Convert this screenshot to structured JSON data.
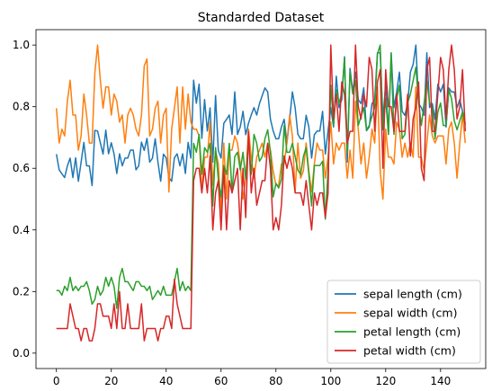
{
  "chart_data": {
    "type": "line",
    "title": "Standarded Dataset",
    "xlabel": "",
    "ylabel": "",
    "xlim": [
      -7.45,
      156.45
    ],
    "ylim": [
      -0.05,
      1.05
    ],
    "xticks": [
      0,
      20,
      40,
      60,
      80,
      100,
      120,
      140
    ],
    "yticks": [
      0.0,
      0.2,
      0.4,
      0.6,
      0.8,
      1.0
    ],
    "grid": false,
    "legend_position": "lower-right",
    "series": [
      {
        "name": "sepal length (cm)",
        "color": "#1f77b4",
        "values": [
          0.646,
          0.595,
          0.582,
          0.57,
          0.608,
          0.633,
          0.57,
          0.634,
          0.558,
          0.62,
          0.684,
          0.608,
          0.608,
          0.544,
          0.723,
          0.721,
          0.683,
          0.646,
          0.724,
          0.647,
          0.683,
          0.647,
          0.583,
          0.647,
          0.608,
          0.633,
          0.633,
          0.659,
          0.659,
          0.595,
          0.608,
          0.685,
          0.658,
          0.697,
          0.62,
          0.633,
          0.696,
          0.62,
          0.558,
          0.646,
          0.634,
          0.57,
          0.558,
          0.634,
          0.647,
          0.608,
          0.647,
          0.583,
          0.684,
          0.633,
          0.886,
          0.811,
          0.873,
          0.697,
          0.823,
          0.721,
          0.796,
          0.62,
          0.836,
          0.658,
          0.633,
          0.746,
          0.759,
          0.773,
          0.71,
          0.848,
          0.71,
          0.734,
          0.785,
          0.709,
          0.746,
          0.773,
          0.797,
          0.773,
          0.81,
          0.836,
          0.861,
          0.848,
          0.759,
          0.721,
          0.696,
          0.696,
          0.734,
          0.759,
          0.683,
          0.759,
          0.848,
          0.797,
          0.71,
          0.696,
          0.696,
          0.772,
          0.734,
          0.633,
          0.709,
          0.721,
          0.721,
          0.785,
          0.646,
          0.721,
          0.797,
          0.734,
          0.899,
          0.797,
          0.823,
          0.962,
          0.62,
          0.924,
          0.848,
          0.912,
          0.823,
          0.81,
          0.861,
          0.722,
          0.734,
          0.81,
          0.823,
          0.975,
          0.975,
          0.759,
          0.873,
          0.71,
          0.975,
          0.797,
          0.848,
          0.912,
          0.785,
          0.772,
          0.81,
          0.912,
          0.937,
          1.0,
          0.81,
          0.797,
          0.772,
          0.975,
          0.797,
          0.81,
          0.759,
          0.873,
          0.848,
          0.873,
          0.734,
          0.861,
          0.848,
          0.848,
          0.797,
          0.823,
          0.785,
          0.746
        ]
      },
      {
        "name": "sepal width (cm)",
        "color": "#ff7f0e",
        "values": [
          0.795,
          0.682,
          0.727,
          0.705,
          0.818,
          0.886,
          0.773,
          0.773,
          0.659,
          0.705,
          0.841,
          0.773,
          0.682,
          0.682,
          0.909,
          1.0,
          0.886,
          0.795,
          0.864,
          0.864,
          0.773,
          0.841,
          0.818,
          0.75,
          0.773,
          0.682,
          0.773,
          0.795,
          0.773,
          0.727,
          0.705,
          0.773,
          0.932,
          0.955,
          0.705,
          0.727,
          0.795,
          0.818,
          0.682,
          0.773,
          0.795,
          0.523,
          0.727,
          0.795,
          0.864,
          0.682,
          0.864,
          0.727,
          0.841,
          0.75,
          0.727,
          0.727,
          0.705,
          0.523,
          0.636,
          0.636,
          0.75,
          0.545,
          0.659,
          0.614,
          0.455,
          0.682,
          0.5,
          0.659,
          0.659,
          0.705,
          0.682,
          0.614,
          0.5,
          0.568,
          0.727,
          0.636,
          0.568,
          0.636,
          0.659,
          0.682,
          0.636,
          0.682,
          0.659,
          0.591,
          0.545,
          0.545,
          0.614,
          0.614,
          0.682,
          0.773,
          0.705,
          0.523,
          0.682,
          0.568,
          0.591,
          0.682,
          0.591,
          0.523,
          0.614,
          0.682,
          0.659,
          0.659,
          0.568,
          0.636,
          0.75,
          0.614,
          0.682,
          0.659,
          0.682,
          0.682,
          0.568,
          0.659,
          0.568,
          0.818,
          0.727,
          0.614,
          0.682,
          0.568,
          0.636,
          0.727,
          0.682,
          0.864,
          0.591,
          0.5,
          0.727,
          0.636,
          0.636,
          0.614,
          0.75,
          0.727,
          0.636,
          0.682,
          0.636,
          0.682,
          0.636,
          0.864,
          0.636,
          0.636,
          0.591,
          0.682,
          0.773,
          0.705,
          0.682,
          0.705,
          0.705,
          0.705,
          0.614,
          0.727,
          0.75,
          0.682,
          0.568,
          0.682,
          0.773,
          0.682
        ]
      },
      {
        "name": "petal length (cm)",
        "color": "#2ca02c",
        "values": [
          0.203,
          0.203,
          0.188,
          0.217,
          0.203,
          0.246,
          0.203,
          0.217,
          0.203,
          0.217,
          0.217,
          0.232,
          0.203,
          0.159,
          0.174,
          0.217,
          0.188,
          0.203,
          0.246,
          0.217,
          0.246,
          0.217,
          0.145,
          0.246,
          0.275,
          0.232,
          0.232,
          0.217,
          0.203,
          0.232,
          0.232,
          0.217,
          0.217,
          0.203,
          0.217,
          0.174,
          0.188,
          0.203,
          0.188,
          0.217,
          0.188,
          0.188,
          0.188,
          0.232,
          0.275,
          0.203,
          0.232,
          0.203,
          0.217,
          0.203,
          0.681,
          0.652,
          0.71,
          0.58,
          0.667,
          0.652,
          0.681,
          0.478,
          0.667,
          0.565,
          0.507,
          0.609,
          0.58,
          0.681,
          0.522,
          0.638,
          0.652,
          0.594,
          0.652,
          0.565,
          0.696,
          0.58,
          0.71,
          0.681,
          0.623,
          0.638,
          0.696,
          0.725,
          0.652,
          0.507,
          0.551,
          0.536,
          0.565,
          0.739,
          0.652,
          0.652,
          0.681,
          0.638,
          0.594,
          0.58,
          0.638,
          0.667,
          0.58,
          0.478,
          0.609,
          0.609,
          0.609,
          0.623,
          0.435,
          0.594,
          0.87,
          0.739,
          0.855,
          0.812,
          0.841,
          0.957,
          0.652,
          0.913,
          0.841,
          0.884,
          0.739,
          0.768,
          0.797,
          0.725,
          0.739,
          0.768,
          0.797,
          0.971,
          1.0,
          0.725,
          0.826,
          0.71,
          0.971,
          0.71,
          0.826,
          0.87,
          0.696,
          0.71,
          0.812,
          0.841,
          0.884,
          0.928,
          0.812,
          0.739,
          0.812,
          0.884,
          0.812,
          0.797,
          0.696,
          0.783,
          0.812,
          0.739,
          0.739,
          0.855,
          0.826,
          0.754,
          0.725,
          0.754,
          0.783,
          0.739
        ]
      },
      {
        "name": "petal width (cm)",
        "color": "#d62728",
        "values": [
          0.08,
          0.08,
          0.08,
          0.08,
          0.08,
          0.16,
          0.12,
          0.08,
          0.08,
          0.04,
          0.08,
          0.08,
          0.04,
          0.04,
          0.08,
          0.16,
          0.16,
          0.12,
          0.12,
          0.12,
          0.08,
          0.16,
          0.08,
          0.2,
          0.08,
          0.08,
          0.16,
          0.08,
          0.08,
          0.08,
          0.08,
          0.16,
          0.04,
          0.08,
          0.08,
          0.08,
          0.08,
          0.04,
          0.08,
          0.08,
          0.12,
          0.12,
          0.08,
          0.24,
          0.16,
          0.12,
          0.08,
          0.08,
          0.08,
          0.08,
          0.56,
          0.6,
          0.6,
          0.52,
          0.6,
          0.52,
          0.64,
          0.4,
          0.52,
          0.56,
          0.4,
          0.6,
          0.4,
          0.56,
          0.52,
          0.56,
          0.6,
          0.4,
          0.6,
          0.44,
          0.72,
          0.52,
          0.6,
          0.48,
          0.52,
          0.56,
          0.56,
          0.68,
          0.6,
          0.4,
          0.44,
          0.4,
          0.48,
          0.64,
          0.6,
          0.64,
          0.6,
          0.52,
          0.52,
          0.52,
          0.48,
          0.56,
          0.48,
          0.4,
          0.52,
          0.48,
          0.52,
          0.52,
          0.44,
          0.52,
          1.0,
          0.76,
          0.84,
          0.72,
          0.88,
          0.84,
          0.68,
          0.72,
          0.72,
          1.0,
          0.8,
          0.76,
          0.84,
          0.8,
          0.96,
          0.92,
          0.72,
          0.88,
          0.92,
          0.6,
          0.92,
          0.8,
          0.8,
          0.72,
          0.84,
          0.72,
          0.72,
          0.72,
          0.84,
          0.64,
          0.76,
          0.8,
          0.88,
          0.6,
          0.56,
          0.92,
          0.96,
          0.72,
          0.72,
          0.84,
          0.96,
          0.92,
          0.76,
          0.92,
          1.0,
          0.92,
          0.76,
          0.8,
          0.92,
          0.72
        ]
      }
    ]
  }
}
